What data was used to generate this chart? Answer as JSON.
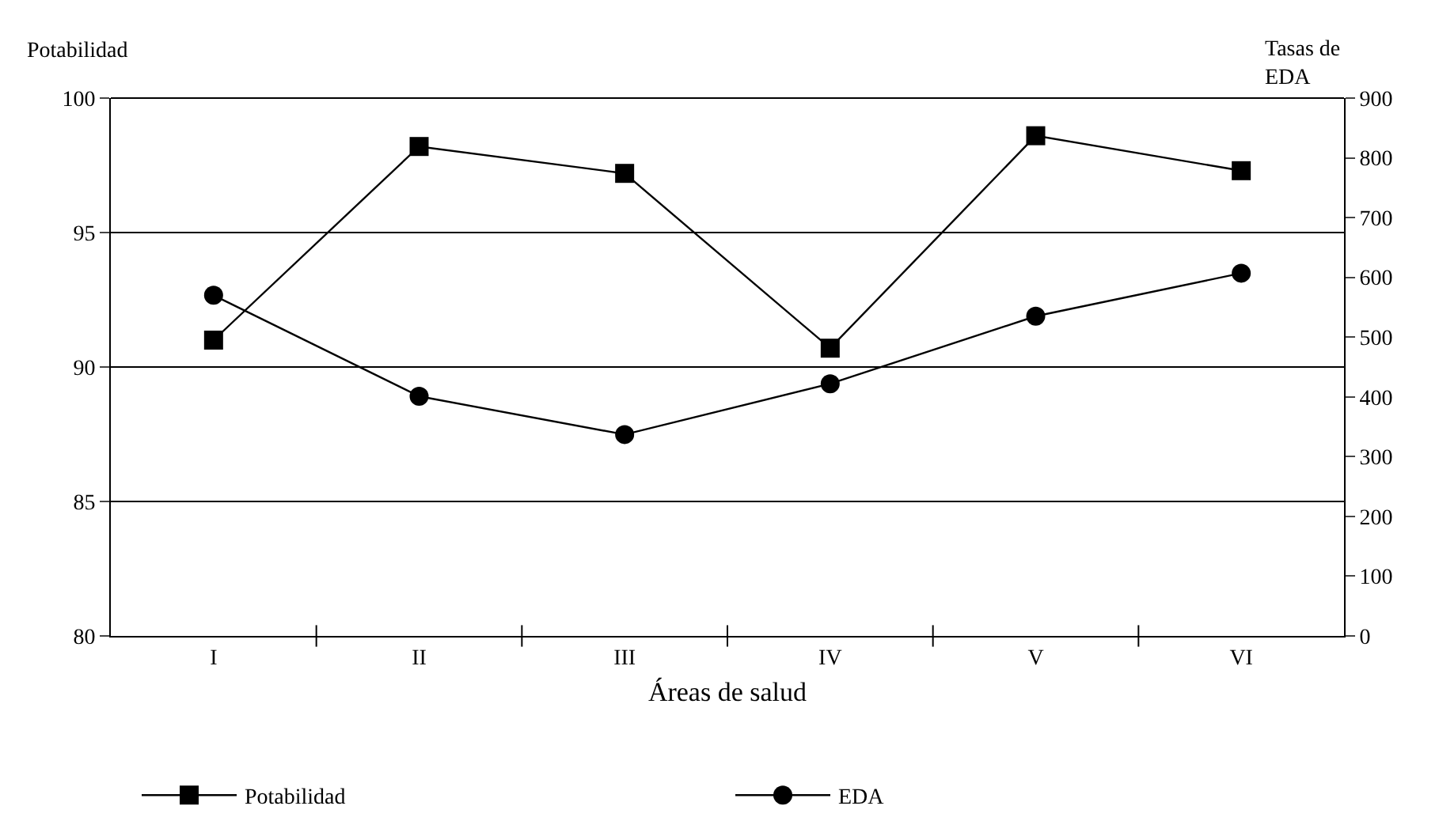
{
  "chart_data": {
    "type": "line",
    "xlabel": "Áreas de salud",
    "ylabel": "Potabilidad",
    "y2label": "Tasas de\nEDA",
    "categories": [
      "I",
      "II",
      "III",
      "IV",
      "V",
      "VI"
    ],
    "series": [
      {
        "name": "Potabilidad",
        "color": "#000000",
        "marker": "square",
        "values": [
          91.0,
          98.2,
          97.2,
          90.7,
          98.6,
          97.3
        ]
      },
      {
        "name": "EDA",
        "color": "#000000",
        "marker": "circle",
        "axis": "y2",
        "values": [
          570,
          401,
          337,
          422,
          535,
          607
        ]
      }
    ],
    "ylim": [
      80,
      100
    ],
    "yticks": [
      80,
      85,
      90,
      95,
      100
    ],
    "y2lim": [
      0,
      900
    ],
    "y2ticks": [
      0,
      100,
      200,
      300,
      400,
      500,
      600,
      700,
      800,
      900
    ],
    "grid": "y",
    "legend": "bottom",
    "line_style": "solid"
  }
}
